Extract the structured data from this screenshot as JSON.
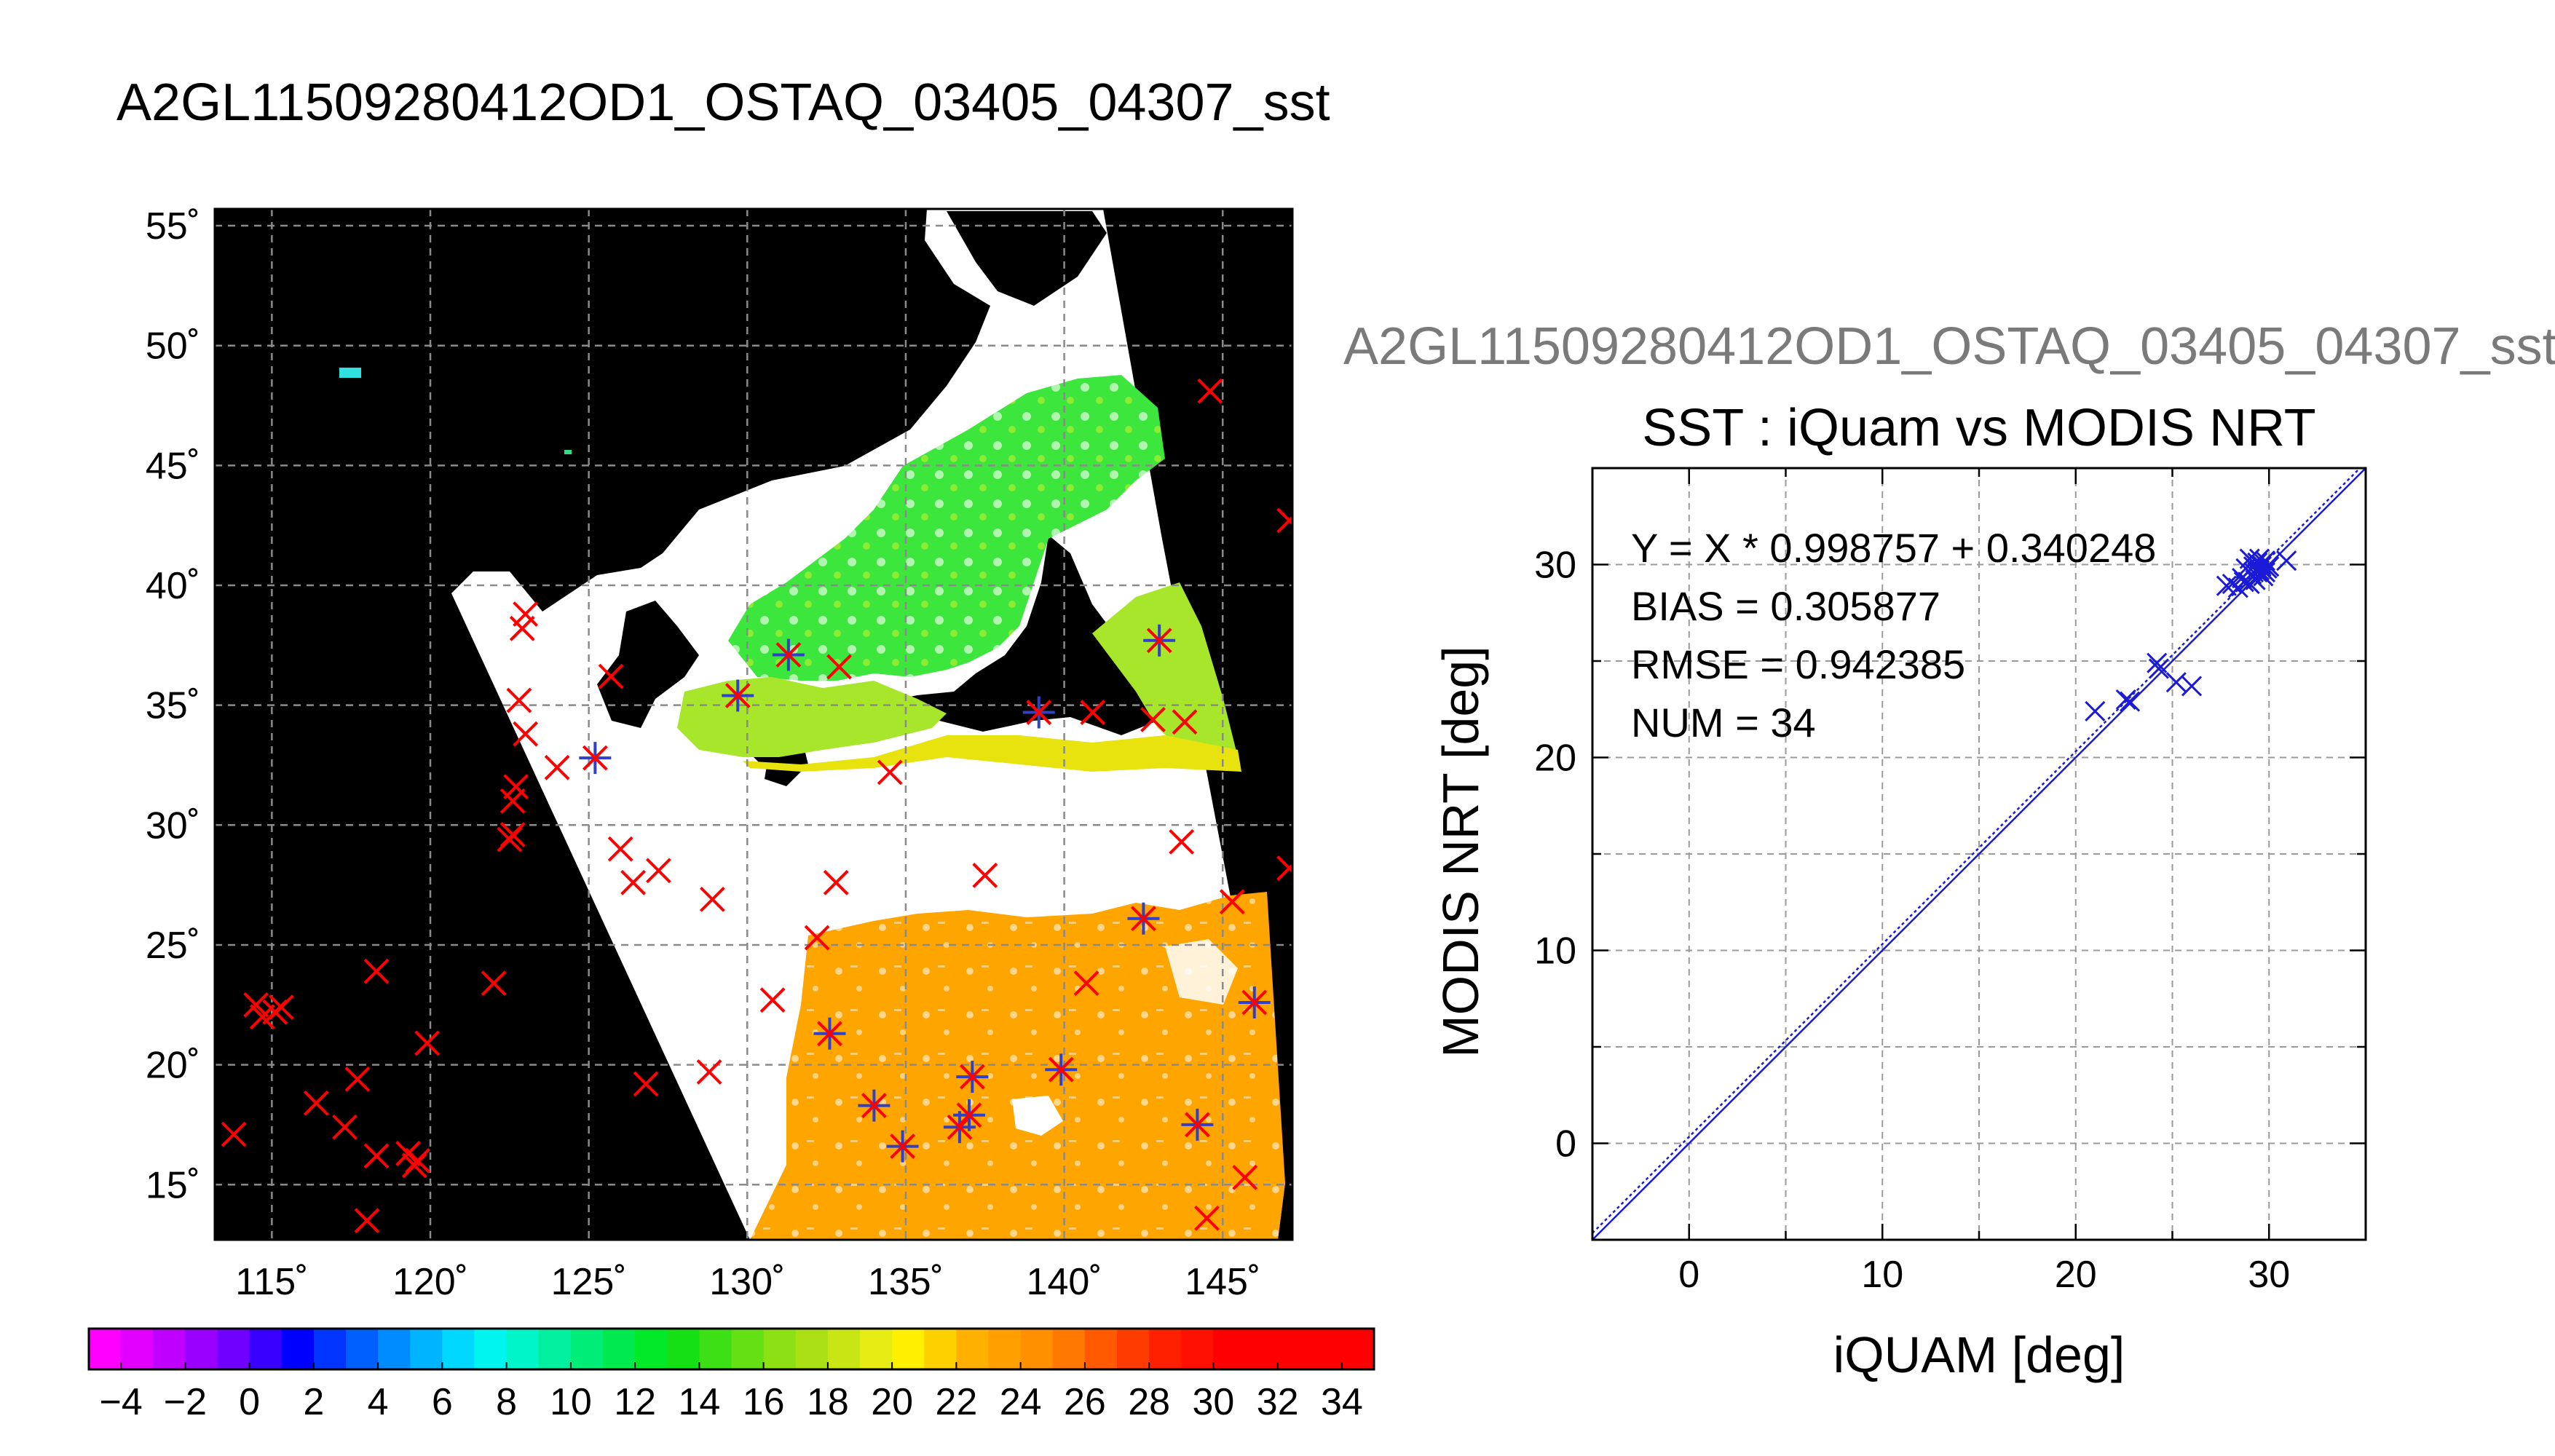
{
  "map_title": "A2GL11509280412OD1_OSTAQ_03405_04307_sst",
  "map": {
    "lat_ticks": [
      "55˚",
      "50˚",
      "45˚",
      "40˚",
      "35˚",
      "30˚",
      "25˚",
      "20˚",
      "15˚"
    ],
    "lon_ticks": [
      "115˚",
      "120˚",
      "125˚",
      "130˚",
      "135˚",
      "140˚",
      "145˚"
    ],
    "lat_range": [
      12.7,
      55.7
    ],
    "lon_range": [
      113.2,
      147.2
    ],
    "grid": true,
    "background": "#000000",
    "swath_colors": {
      "cloud": "#ffffff",
      "cold": "#2adf2a",
      "mid": "#a8e62b",
      "warm": "#e8e20e",
      "hot": "#ffa500"
    },
    "marker_colors": {
      "iquam": "#ff0000",
      "match": "#3040c8"
    }
  },
  "colorbar": {
    "tick_labels": [
      "−4",
      "−2",
      "0",
      "2",
      "4",
      "6",
      "8",
      "10",
      "12",
      "14",
      "16",
      "18",
      "20",
      "22",
      "24",
      "26",
      "28",
      "30",
      "32",
      "34"
    ],
    "range": [
      -5,
      35
    ],
    "colors": [
      "#ff00ff",
      "#e100ff",
      "#c000ff",
      "#9a00ff",
      "#7000ff",
      "#3a00ff",
      "#0000ff",
      "#0035ff",
      "#0060ff",
      "#008cff",
      "#00b4ff",
      "#00d8ff",
      "#00f5f0",
      "#00f5c8",
      "#00f0a0",
      "#00ee78",
      "#00ea50",
      "#00e828",
      "#14e014",
      "#3ce014",
      "#64e014",
      "#8ce014",
      "#aae014",
      "#c8e614",
      "#e6ec14",
      "#fff000",
      "#ffd000",
      "#ffb000",
      "#ffa000",
      "#ff9000",
      "#ff7800",
      "#ff5a00",
      "#ff3c00",
      "#ff2000",
      "#ff1000",
      "#ff0000",
      "#ff0000",
      "#ff0000",
      "#ff0000",
      "#ff0000"
    ]
  },
  "scatter_supertitle": "A2GL11509280412OD1_OSTAQ_03405_04307_sst",
  "chart_data": {
    "type": "scatter",
    "title": "SST : iQuam vs MODIS NRT",
    "xlabel": "iQUAM [deg]",
    "ylabel": "MODIS NRT [deg]",
    "xlim": [
      -5,
      35
    ],
    "ylim": [
      -5,
      35
    ],
    "xticks": [
      "0",
      "10",
      "20",
      "30"
    ],
    "yticks": [
      "0",
      "10",
      "20",
      "30"
    ],
    "grid": true,
    "stats": {
      "fit": "Y = X * 0.998757 + 0.340248",
      "bias": "BIAS = 0.305877",
      "rmse": "RMSE = 0.942385",
      "num": "NUM = 34"
    },
    "fit_line": {
      "slope": 0.998757,
      "intercept": 0.340248
    },
    "marker_color": "#1a1ad8",
    "points": [
      [
        21.0,
        22.4
      ],
      [
        22.6,
        23.0
      ],
      [
        22.8,
        22.9
      ],
      [
        24.2,
        24.9
      ],
      [
        24.3,
        24.6
      ],
      [
        25.2,
        23.9
      ],
      [
        26.0,
        23.7
      ],
      [
        27.8,
        28.9
      ],
      [
        28.1,
        29.0
      ],
      [
        28.4,
        28.8
      ],
      [
        28.6,
        29.3
      ],
      [
        28.8,
        29.8
      ],
      [
        28.9,
        29.1
      ],
      [
        29.0,
        30.3
      ],
      [
        29.1,
        29.5
      ],
      [
        29.2,
        29.9
      ],
      [
        29.3,
        29.2
      ],
      [
        29.4,
        30.1
      ],
      [
        29.5,
        29.7
      ],
      [
        29.6,
        30.0
      ],
      [
        29.7,
        29.4
      ],
      [
        29.8,
        30.2
      ],
      [
        29.9,
        29.8
      ],
      [
        30.0,
        29.9
      ],
      [
        29.4,
        29.6
      ],
      [
        29.6,
        29.5
      ],
      [
        29.5,
        30.3
      ],
      [
        30.9,
        30.2
      ],
      [
        29.0,
        29.0
      ],
      [
        29.2,
        29.6
      ],
      [
        29.8,
        29.6
      ],
      [
        29.3,
        30.0
      ],
      [
        28.7,
        29.1
      ],
      [
        29.6,
        29.9
      ]
    ]
  }
}
